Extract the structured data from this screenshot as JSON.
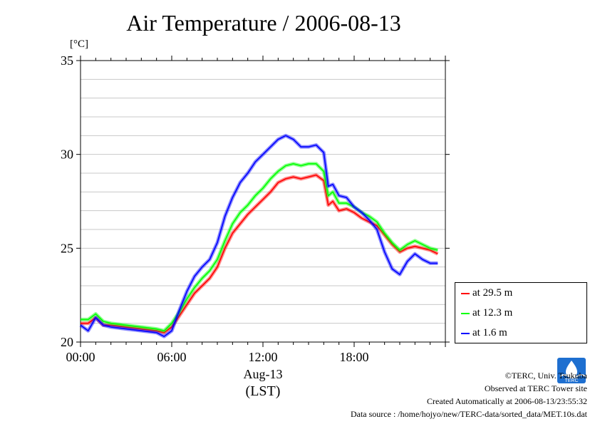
{
  "chart_data": {
    "type": "line",
    "title": "Air Temperature / 2006-08-13",
    "yunit": "[°C]",
    "xlabel_date": "Aug-13",
    "xlabel_zone": "(LST)",
    "ylim": [
      20,
      35
    ],
    "xlim_hours": [
      0,
      24
    ],
    "yticks": [
      20,
      25,
      30,
      35
    ],
    "xticks": [
      {
        "hour": 0,
        "label": "00:00"
      },
      {
        "hour": 6,
        "label": "06:00"
      },
      {
        "hour": 12,
        "label": "12:00"
      },
      {
        "hour": 18,
        "label": "18:00"
      }
    ],
    "grid": true,
    "legend_position": "bottom-right, outside plot",
    "x_hours": [
      0,
      0.5,
      1,
      1.5,
      2,
      3,
      4,
      5,
      5.5,
      6,
      6.5,
      7,
      7.5,
      8,
      8.5,
      9,
      9.5,
      10,
      10.5,
      11,
      11.5,
      12,
      12.5,
      13,
      13.5,
      14,
      14.5,
      15,
      15.5,
      16,
      16.3,
      16.6,
      17,
      17.5,
      18,
      18.5,
      19,
      19.5,
      20,
      20.5,
      21,
      21.5,
      22,
      22.5,
      23,
      23.5
    ],
    "series": [
      {
        "name": "at 29.5 m",
        "color": "#ff0000",
        "values": [
          21.0,
          21.0,
          21.3,
          20.9,
          20.9,
          20.8,
          20.7,
          20.6,
          20.5,
          20.8,
          21.4,
          22.0,
          22.6,
          23.0,
          23.4,
          24.0,
          25.0,
          25.8,
          26.3,
          26.8,
          27.2,
          27.6,
          28.0,
          28.5,
          28.7,
          28.8,
          28.7,
          28.8,
          28.9,
          28.6,
          27.3,
          27.5,
          27.0,
          27.1,
          26.9,
          26.6,
          26.4,
          26.2,
          25.7,
          25.2,
          24.8,
          25.0,
          25.1,
          25.0,
          24.9,
          24.7
        ]
      },
      {
        "name": "at 12.3 m",
        "color": "#00ff00",
        "values": [
          21.2,
          21.2,
          21.5,
          21.1,
          21.0,
          20.9,
          20.8,
          20.7,
          20.6,
          21.0,
          21.6,
          22.3,
          22.9,
          23.4,
          23.8,
          24.4,
          25.4,
          26.3,
          26.9,
          27.3,
          27.8,
          28.2,
          28.7,
          29.1,
          29.4,
          29.5,
          29.4,
          29.5,
          29.5,
          29.1,
          27.8,
          28.0,
          27.4,
          27.4,
          27.2,
          26.9,
          26.7,
          26.4,
          25.8,
          25.3,
          24.9,
          25.2,
          25.4,
          25.2,
          25.0,
          24.9
        ]
      },
      {
        "name": "at 1.6 m",
        "color": "#0000ff",
        "values": [
          20.9,
          20.6,
          21.3,
          20.9,
          20.8,
          20.7,
          20.6,
          20.5,
          20.3,
          20.6,
          21.7,
          22.7,
          23.5,
          24.0,
          24.4,
          25.3,
          26.7,
          27.7,
          28.5,
          29.0,
          29.6,
          30.0,
          30.4,
          30.8,
          31.0,
          30.8,
          30.4,
          30.4,
          30.5,
          30.1,
          28.3,
          28.4,
          27.8,
          27.7,
          27.2,
          26.9,
          26.5,
          26.0,
          24.8,
          23.9,
          23.6,
          24.3,
          24.7,
          24.4,
          24.2,
          24.2
        ]
      }
    ]
  },
  "footer": {
    "copyright": "©TERC, Univ. Tsukuba",
    "site": "Observed at TERC Tower site",
    "created": "Created Automatically at 2006-08-13/23:55:32",
    "source": "Data source : /home/hojyo/new/TERC-data/sorted_data/MET.10s.dat"
  },
  "logo": {
    "text": "TERC",
    "icon": "terc-logo-icon"
  }
}
